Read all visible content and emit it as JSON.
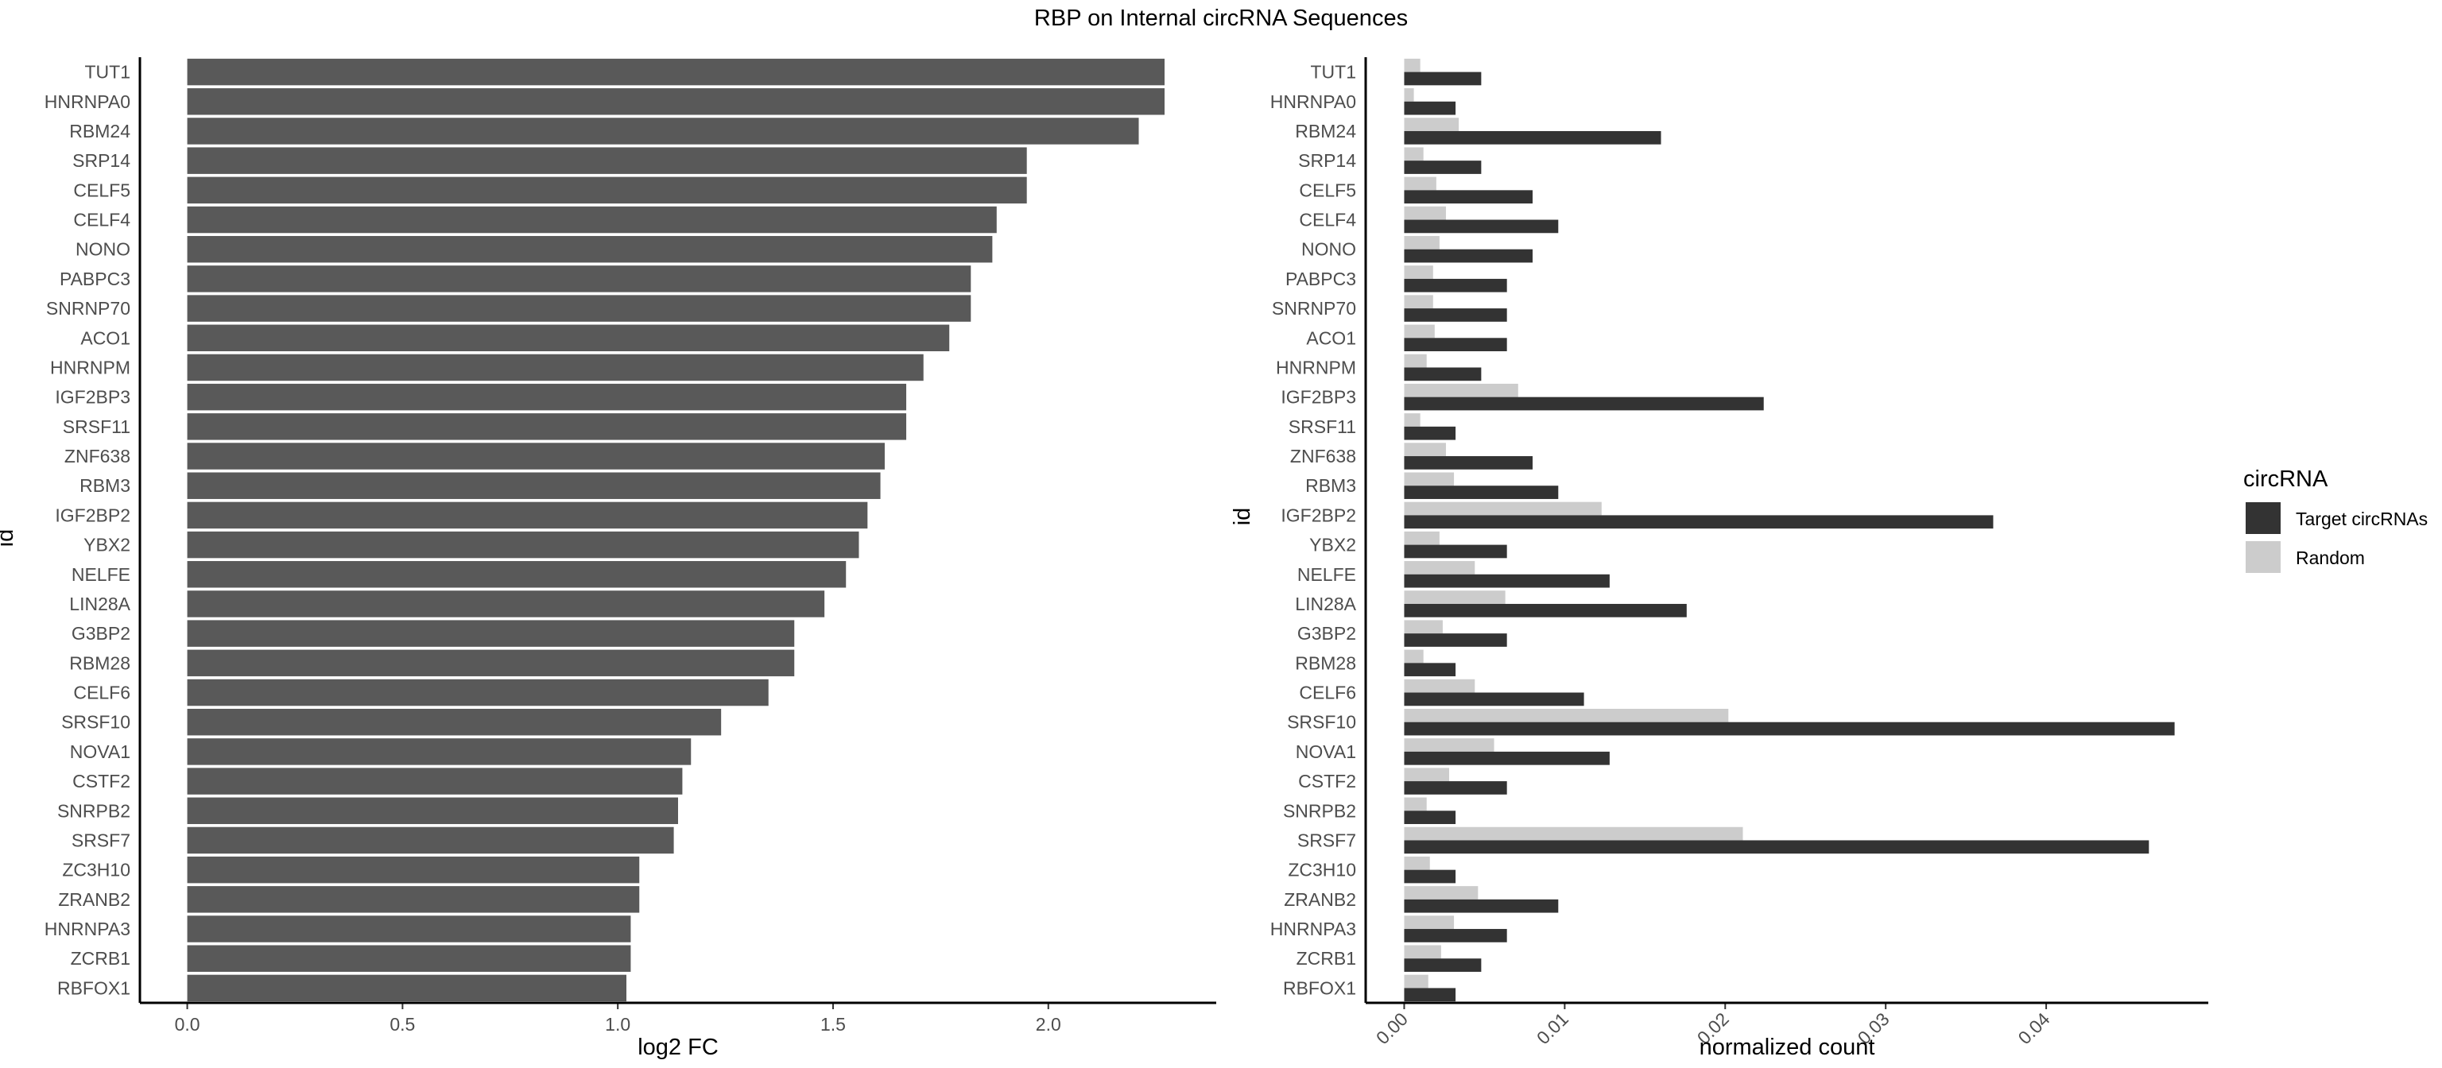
{
  "title": "RBP on Internal circRNA Sequences",
  "colors": {
    "fc_bar": "#595959",
    "target": "#333333",
    "random": "#cccccc",
    "axis": "#000000",
    "tick_text": "#4d4d4d"
  },
  "chart_data": [
    {
      "type": "bar",
      "orientation": "horizontal",
      "xlabel": "log2 FC",
      "ylabel": "id",
      "xlim": [
        -0.11,
        2.39
      ],
      "xticks": [
        "0.0",
        "0.5",
        "1.0",
        "1.5",
        "2.0"
      ],
      "grid": false,
      "categories": [
        "TUT1",
        "HNRNPA0",
        "RBM24",
        "SRP14",
        "CELF5",
        "CELF4",
        "NONO",
        "PABPC3",
        "SNRNP70",
        "ACO1",
        "HNRNPM",
        "IGF2BP3",
        "SRSF11",
        "ZNF638",
        "RBM3",
        "IGF2BP2",
        "YBX2",
        "NELFE",
        "LIN28A",
        "G3BP2",
        "RBM28",
        "CELF6",
        "SRSF10",
        "NOVA1",
        "CSTF2",
        "SNRPB2",
        "SRSF7",
        "ZC3H10",
        "ZRANB2",
        "HNRNPA3",
        "ZCRB1",
        "RBFOX1"
      ],
      "values": [
        2.27,
        2.27,
        2.21,
        1.95,
        1.95,
        1.88,
        1.87,
        1.82,
        1.82,
        1.77,
        1.71,
        1.67,
        1.67,
        1.62,
        1.61,
        1.58,
        1.56,
        1.53,
        1.48,
        1.41,
        1.41,
        1.35,
        1.24,
        1.17,
        1.15,
        1.14,
        1.13,
        1.05,
        1.05,
        1.03,
        1.03,
        1.02
      ]
    },
    {
      "type": "bar",
      "orientation": "horizontal",
      "xlabel": "normalized count",
      "ylabel": "id",
      "xlim": [
        -0.0024,
        0.0501
      ],
      "xticks": [
        "0.00",
        "0.01",
        "0.02",
        "0.03",
        "0.04"
      ],
      "grid": false,
      "legend": {
        "title": "circRNA",
        "position": "right"
      },
      "categories": [
        "TUT1",
        "HNRNPA0",
        "RBM24",
        "SRP14",
        "CELF5",
        "CELF4",
        "NONO",
        "PABPC3",
        "SNRNP70",
        "ACO1",
        "HNRNPM",
        "IGF2BP3",
        "SRSF11",
        "ZNF638",
        "RBM3",
        "IGF2BP2",
        "YBX2",
        "NELFE",
        "LIN28A",
        "G3BP2",
        "RBM28",
        "CELF6",
        "SRSF10",
        "NOVA1",
        "CSTF2",
        "SNRPB2",
        "SRSF7",
        "ZC3H10",
        "ZRANB2",
        "HNRNPA3",
        "ZCRB1",
        "RBFOX1"
      ],
      "series": [
        {
          "name": "Target circRNAs",
          "values": [
            0.0048,
            0.0032,
            0.016,
            0.0048,
            0.008,
            0.0096,
            0.008,
            0.0064,
            0.0064,
            0.0064,
            0.0048,
            0.0224,
            0.0032,
            0.008,
            0.0096,
            0.0367,
            0.0064,
            0.0128,
            0.0176,
            0.0064,
            0.0032,
            0.0112,
            0.048,
            0.0128,
            0.0064,
            0.0032,
            0.0464,
            0.0032,
            0.0096,
            0.0064,
            0.0048,
            0.0032
          ]
        },
        {
          "name": "Random",
          "values": [
            0.001,
            0.0006,
            0.0034,
            0.0012,
            0.002,
            0.0026,
            0.0022,
            0.0018,
            0.0018,
            0.0019,
            0.0014,
            0.0071,
            0.001,
            0.0026,
            0.0031,
            0.0123,
            0.0022,
            0.0044,
            0.0063,
            0.0024,
            0.0012,
            0.0044,
            0.0202,
            0.0056,
            0.0028,
            0.0014,
            0.0211,
            0.0016,
            0.0046,
            0.0031,
            0.0023,
            0.0015
          ]
        }
      ]
    }
  ]
}
